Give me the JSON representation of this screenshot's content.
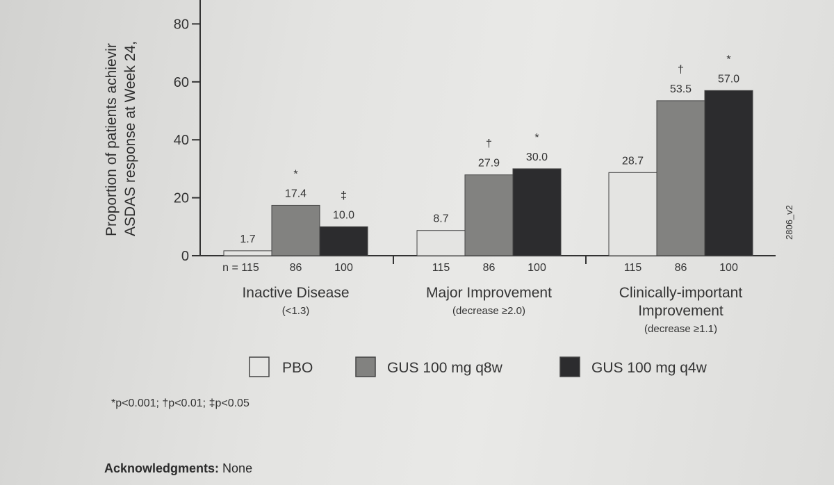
{
  "chart_data": {
    "type": "bar",
    "ylabel_lines": [
      "Proportion of patients achievir",
      "ASDAS response at Week 24,"
    ],
    "ylim": [
      0,
      90
    ],
    "yticks": [
      0,
      20,
      40,
      60,
      80
    ],
    "groups": [
      {
        "label": "Inactive Disease",
        "sublabel_lines": [
          "(<1.3)"
        ],
        "n": [
          "n = 115",
          "86",
          "100"
        ],
        "values": [
          1.7,
          17.4,
          10.0
        ],
        "value_labels": [
          "1.7",
          "17.4",
          "10.0"
        ],
        "sig": [
          "",
          "*",
          "‡"
        ]
      },
      {
        "label": "Major Improvement",
        "sublabel_lines": [
          "(decrease ≥2.0)"
        ],
        "n": [
          "115",
          "86",
          "100"
        ],
        "values": [
          8.7,
          27.9,
          30.0
        ],
        "value_labels": [
          "8.7",
          "27.9",
          "30.0"
        ],
        "sig": [
          "",
          "†",
          "*"
        ]
      },
      {
        "label_lines": [
          "Clinically-important",
          "Improvement"
        ],
        "sublabel_lines": [
          "(decrease ≥1.1)"
        ],
        "n": [
          "115",
          "86",
          "100"
        ],
        "values": [
          28.7,
          53.5,
          57.0
        ],
        "value_labels": [
          "28.7",
          "53.5",
          "57.0"
        ],
        "sig": [
          "",
          "†",
          "*"
        ]
      }
    ],
    "series": [
      {
        "name": "PBO",
        "color": "#e4e4e2"
      },
      {
        "name": "GUS 100 mg q8w",
        "color": "#828280"
      },
      {
        "name": "GUS 100 mg q4w",
        "color": "#2c2c2e"
      }
    ],
    "side_code": "2806_v2",
    "grid": false,
    "legend_position": "bottom"
  },
  "footnote": "*p<0.001; †p<0.01; ‡p<0.05",
  "acknowledgments": {
    "label": "Acknowledgments:",
    "text": "None"
  }
}
